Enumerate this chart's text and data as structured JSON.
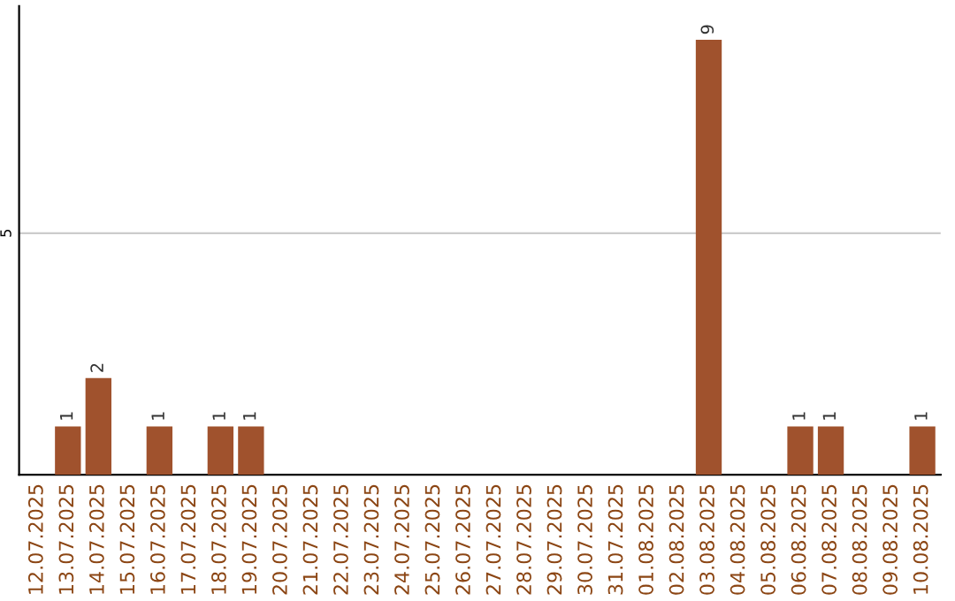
{
  "chart_data": {
    "type": "bar",
    "categories": [
      "12.07.2025",
      "13.07.2025",
      "14.07.2025",
      "15.07.2025",
      "16.07.2025",
      "17.07.2025",
      "18.07.2025",
      "19.07.2025",
      "20.07.2025",
      "21.07.2025",
      "22.07.2025",
      "23.07.2025",
      "24.07.2025",
      "25.07.2025",
      "26.07.2025",
      "27.07.2025",
      "28.07.2025",
      "29.07.2025",
      "30.07.2025",
      "31.07.2025",
      "01.08.2025",
      "02.08.2025",
      "03.08.2025",
      "04.08.2025",
      "05.08.2025",
      "06.08.2025",
      "07.08.2025",
      "08.08.2025",
      "09.08.2025",
      "10.08.2025"
    ],
    "values": [
      0,
      1,
      2,
      0,
      1,
      0,
      1,
      1,
      0,
      0,
      0,
      0,
      0,
      0,
      0,
      0,
      0,
      0,
      0,
      0,
      0,
      0,
      9,
      0,
      0,
      1,
      1,
      0,
      0,
      1
    ],
    "color": "#a0522d",
    "value_labels": [
      null,
      "1",
      "2",
      null,
      "1",
      null,
      "1",
      "1",
      null,
      null,
      null,
      null,
      null,
      null,
      null,
      null,
      null,
      null,
      null,
      null,
      null,
      null,
      "9",
      null,
      null,
      "1",
      "1",
      null,
      null,
      "1"
    ],
    "ylim": [
      0,
      9.7
    ],
    "yticks": [
      5
    ],
    "grid": "y"
  }
}
